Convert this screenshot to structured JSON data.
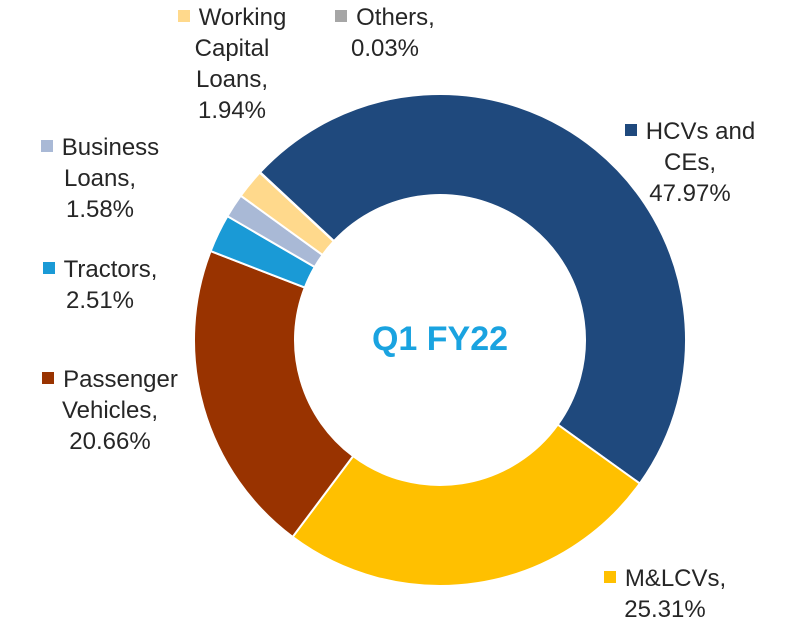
{
  "chart_data": {
    "type": "donut",
    "center_label": "Q1 FY22",
    "categories": [
      "HCVs and CEs",
      "M&LCVs",
      "Passenger Vehicles",
      "Tractors",
      "Business Loans",
      "Working Capital Loans",
      "Others"
    ],
    "values": [
      47.97,
      25.31,
      20.66,
      2.51,
      1.58,
      1.94,
      0.03
    ],
    "value_labels": [
      "47.97%",
      "25.31%",
      "20.66%",
      "2.51%",
      "1.58%",
      "1.94%",
      "0.03%"
    ],
    "label_separator": ",",
    "colors": [
      "#1f497d",
      "#ffc000",
      "#993300",
      "#1a9ad6",
      "#a9b9d6",
      "#ffd98c",
      "#a6a6a6"
    ]
  }
}
